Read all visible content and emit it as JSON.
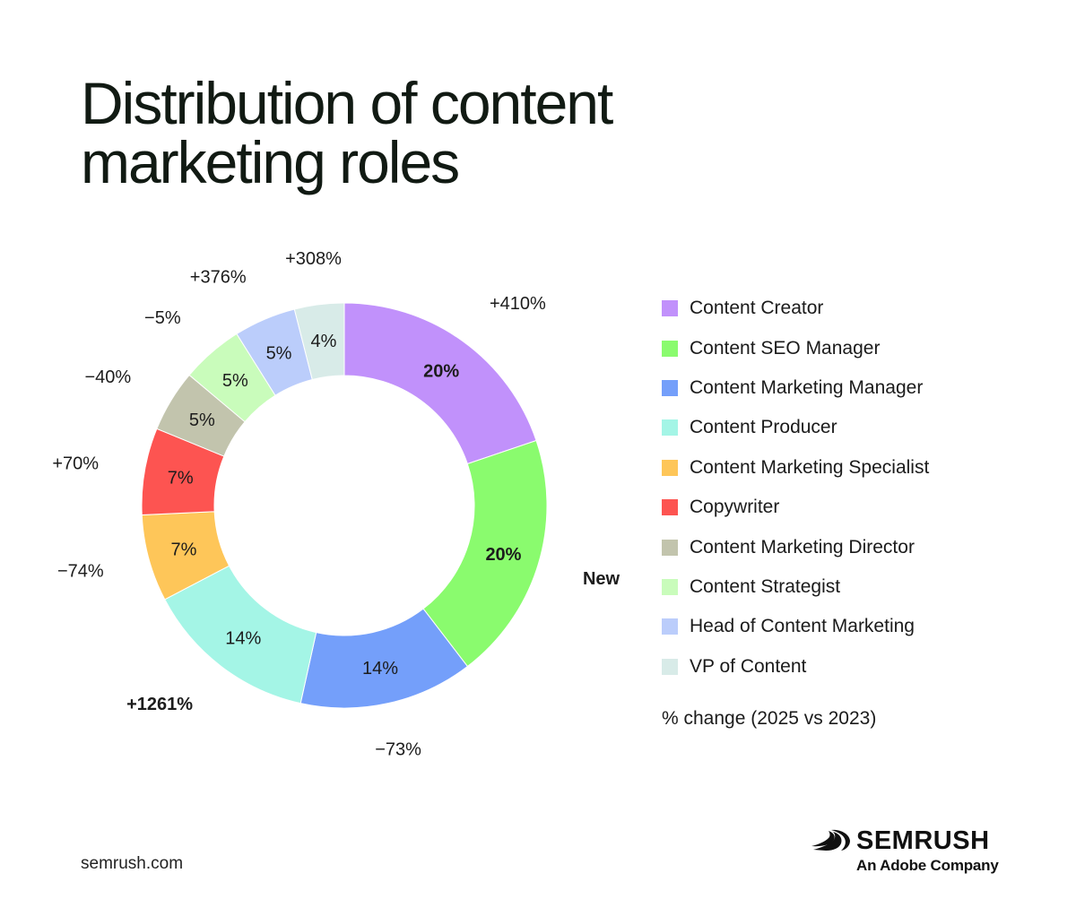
{
  "header": {
    "title_line1": "Distribution of content",
    "title_line2": "marketing roles"
  },
  "chart_data": {
    "type": "pie",
    "variant": "donut",
    "legend_position": "right",
    "legend_note": "% change (2025 vs 2023)",
    "slices": [
      {
        "name": "Content Creator",
        "value": 20,
        "label": "20%",
        "change": "+410%",
        "color": "#c191fb",
        "bold": true
      },
      {
        "name": "Content SEO Manager",
        "value": 20,
        "label": "20%",
        "change": "New",
        "color": "#8afb6e",
        "bold": true
      },
      {
        "name": "Content Marketing Manager",
        "value": 14,
        "label": "14%",
        "change": "−73%",
        "color": "#749ffa",
        "bold": false
      },
      {
        "name": "Content Producer",
        "value": 14,
        "label": "14%",
        "change": "+1261%",
        "color": "#a4f5e6",
        "bold": false
      },
      {
        "name": "Content Marketing Specialist",
        "value": 7,
        "label": "7%",
        "change": "−74%",
        "color": "#fec659",
        "bold": false
      },
      {
        "name": "Copywriter",
        "value": 7,
        "label": "7%",
        "change": "+70%",
        "color": "#fd5451",
        "bold": false
      },
      {
        "name": "Content Marketing Director",
        "value": 5,
        "label": "5%",
        "change": "−40%",
        "color": "#c2c4ad",
        "bold": false
      },
      {
        "name": "Content Strategist",
        "value": 5,
        "label": "5%",
        "change": "−5%",
        "color": "#c9fcbb",
        "bold": false
      },
      {
        "name": "Head of Content Marketing",
        "value": 5,
        "label": "5%",
        "change": "+376%",
        "color": "#bbcdfb",
        "bold": false
      },
      {
        "name": "VP of Content",
        "value": 4,
        "label": "4%",
        "change": "+308%",
        "color": "#d8ebe8",
        "bold": false
      }
    ]
  },
  "footer": {
    "site": "semrush.com",
    "brand_name": "SEMRUSH",
    "brand_tagline": "An Adobe Company",
    "brand_icon": "semrush-fireball-icon"
  }
}
